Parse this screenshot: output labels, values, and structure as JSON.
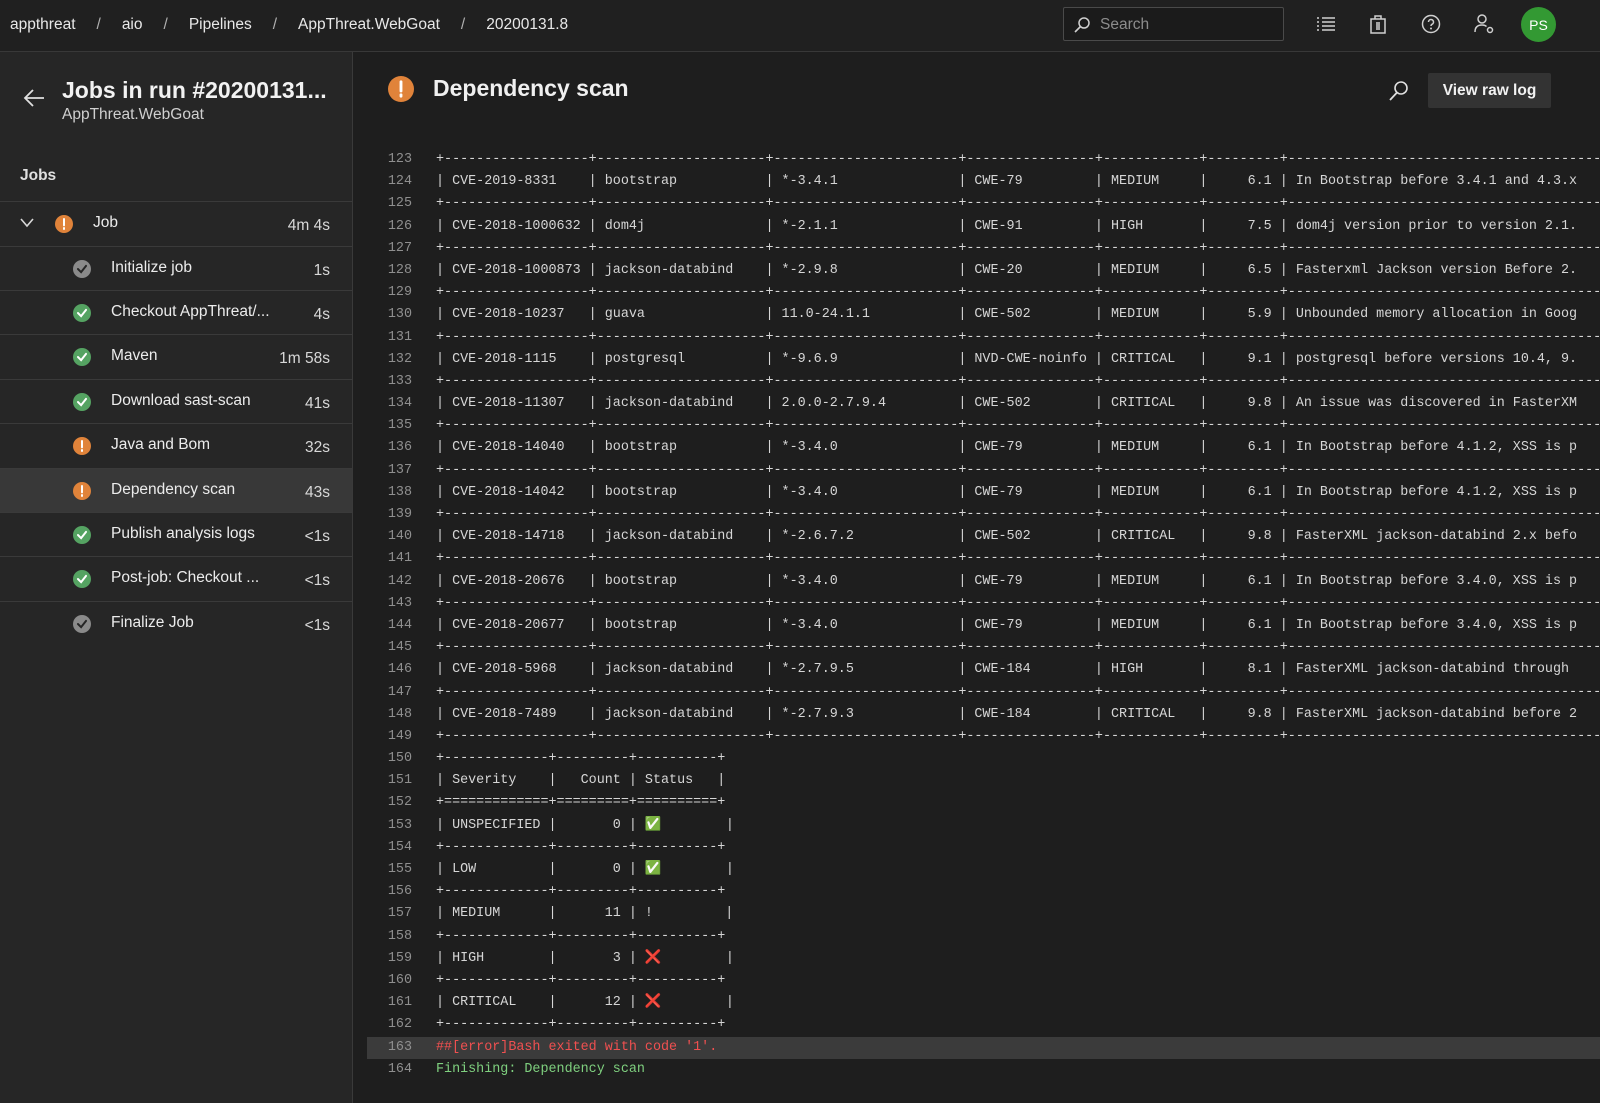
{
  "header": {
    "breadcrumbs": [
      "appthreat",
      "aio",
      "Pipelines",
      "AppThreat.WebGoat",
      "20200131.8"
    ],
    "search_placeholder": "Search",
    "avatar": "PS"
  },
  "sidebar": {
    "title": "Jobs in run #20200131...",
    "subtitle": "AppThreat.WebGoat",
    "section": "Jobs",
    "job": {
      "name": "Job",
      "duration": "4m 4s",
      "status": "warning"
    },
    "steps": [
      {
        "name": "Initialize job",
        "duration": "1s",
        "status": "neutral"
      },
      {
        "name": "Checkout AppThreat/...",
        "duration": "4s",
        "status": "success"
      },
      {
        "name": "Maven",
        "duration": "1m 58s",
        "status": "success"
      },
      {
        "name": "Download sast-scan",
        "duration": "41s",
        "status": "success"
      },
      {
        "name": "Java and Bom",
        "duration": "32s",
        "status": "warning"
      },
      {
        "name": "Dependency scan",
        "duration": "43s",
        "status": "warning",
        "selected": true
      },
      {
        "name": "Publish analysis logs",
        "duration": "<1s",
        "status": "success"
      },
      {
        "name": "Post-job: Checkout ...",
        "duration": "<1s",
        "status": "success"
      },
      {
        "name": "Finalize Job",
        "duration": "<1s",
        "status": "neutral"
      }
    ]
  },
  "main": {
    "title": "Dependency scan",
    "status": "warning",
    "button": "View raw log",
    "lines": [
      {
        "num": 123,
        "text": "+------------------+---------------------+-----------------------+----------------+------------+---------+--------------------------------------------------"
      },
      {
        "num": 124,
        "text": "| CVE-2019-8331    | bootstrap           | *-3.4.1               | CWE-79         | MEDIUM     |     6.1 | In Bootstrap before 3.4.1 and 4.3.x"
      },
      {
        "num": 125,
        "text": "+------------------+---------------------+-----------------------+----------------+------------+---------+--------------------------------------------------"
      },
      {
        "num": 126,
        "text": "| CVE-2018-1000632 | dom4j               | *-2.1.1               | CWE-91         | HIGH       |     7.5 | dom4j version prior to version 2.1."
      },
      {
        "num": 127,
        "text": "+------------------+---------------------+-----------------------+----------------+------------+---------+--------------------------------------------------"
      },
      {
        "num": 128,
        "text": "| CVE-2018-1000873 | jackson-databind    | *-2.9.8               | CWE-20         | MEDIUM     |     6.5 | Fasterxml Jackson version Before 2."
      },
      {
        "num": 129,
        "text": "+------------------+---------------------+-----------------------+----------------+------------+---------+--------------------------------------------------"
      },
      {
        "num": 130,
        "text": "| CVE-2018-10237   | guava               | 11.0-24.1.1           | CWE-502        | MEDIUM     |     5.9 | Unbounded memory allocation in Goog"
      },
      {
        "num": 131,
        "text": "+------------------+---------------------+-----------------------+----------------+------------+---------+--------------------------------------------------"
      },
      {
        "num": 132,
        "text": "| CVE-2018-1115    | postgresql          | *-9.6.9               | NVD-CWE-noinfo | CRITICAL   |     9.1 | postgresql before versions 10.4, 9."
      },
      {
        "num": 133,
        "text": "+------------------+---------------------+-----------------------+----------------+------------+---------+--------------------------------------------------"
      },
      {
        "num": 134,
        "text": "| CVE-2018-11307   | jackson-databind    | 2.0.0-2.7.9.4         | CWE-502        | CRITICAL   |     9.8 | An issue was discovered in FasterXM"
      },
      {
        "num": 135,
        "text": "+------------------+---------------------+-----------------------+----------------+------------+---------+--------------------------------------------------"
      },
      {
        "num": 136,
        "text": "| CVE-2018-14040   | bootstrap           | *-3.4.0               | CWE-79         | MEDIUM     |     6.1 | In Bootstrap before 4.1.2, XSS is p"
      },
      {
        "num": 137,
        "text": "+------------------+---------------------+-----------------------+----------------+------------+---------+--------------------------------------------------"
      },
      {
        "num": 138,
        "text": "| CVE-2018-14042   | bootstrap           | *-3.4.0               | CWE-79         | MEDIUM     |     6.1 | In Bootstrap before 4.1.2, XSS is p"
      },
      {
        "num": 139,
        "text": "+------------------+---------------------+-----------------------+----------------+------------+---------+--------------------------------------------------"
      },
      {
        "num": 140,
        "text": "| CVE-2018-14718   | jackson-databind    | *-2.6.7.2             | CWE-502        | CRITICAL   |     9.8 | FasterXML jackson-databind 2.x befo"
      },
      {
        "num": 141,
        "text": "+------------------+---------------------+-----------------------+----------------+------------+---------+--------------------------------------------------"
      },
      {
        "num": 142,
        "text": "| CVE-2018-20676   | bootstrap           | *-3.4.0               | CWE-79         | MEDIUM     |     6.1 | In Bootstrap before 3.4.0, XSS is p"
      },
      {
        "num": 143,
        "text": "+------------------+---------------------+-----------------------+----------------+------------+---------+--------------------------------------------------"
      },
      {
        "num": 144,
        "text": "| CVE-2018-20677   | bootstrap           | *-3.4.0               | CWE-79         | MEDIUM     |     6.1 | In Bootstrap before 3.4.0, XSS is p"
      },
      {
        "num": 145,
        "text": "+------------------+---------------------+-----------------------+----------------+------------+---------+--------------------------------------------------"
      },
      {
        "num": 146,
        "text": "| CVE-2018-5968    | jackson-databind    | *-2.7.9.5             | CWE-184        | HIGH       |     8.1 | FasterXML jackson-databind through"
      },
      {
        "num": 147,
        "text": "+------------------+---------------------+-----------------------+----------------+------------+---------+--------------------------------------------------"
      },
      {
        "num": 148,
        "text": "| CVE-2018-7489    | jackson-databind    | *-2.7.9.3             | CWE-184        | CRITICAL   |     9.8 | FasterXML jackson-databind before 2"
      },
      {
        "num": 149,
        "text": "+------------------+---------------------+-----------------------+----------------+------------+---------+--------------------------------------------------"
      },
      {
        "num": 150,
        "text": "+-------------+---------+----------+"
      },
      {
        "num": 151,
        "text": "| Severity    |   Count | Status   |"
      },
      {
        "num": 152,
        "text": "+=============+=========+==========+"
      },
      {
        "num": 153,
        "text": "| UNSPECIFIED |       0 | ✅        |"
      },
      {
        "num": 154,
        "text": "+-------------+---------+----------+"
      },
      {
        "num": 155,
        "text": "| LOW         |       0 | ✅        |"
      },
      {
        "num": 156,
        "text": "+-------------+---------+----------+"
      },
      {
        "num": 157,
        "text": "| MEDIUM      |      11 | !         |"
      },
      {
        "num": 158,
        "text": "+-------------+---------+----------+"
      },
      {
        "num": 159,
        "text": "| HIGH        |       3 | ❌        |"
      },
      {
        "num": 160,
        "text": "+-------------+---------+----------+"
      },
      {
        "num": 161,
        "text": "| CRITICAL    |      12 | ❌        |"
      },
      {
        "num": 162,
        "text": "+-------------+---------+----------+"
      },
      {
        "num": 163,
        "text": "##[error]Bash exited with code '1'.",
        "kind": "error"
      },
      {
        "num": 164,
        "text": "Finishing: Dependency scan",
        "kind": "section"
      }
    ]
  }
}
